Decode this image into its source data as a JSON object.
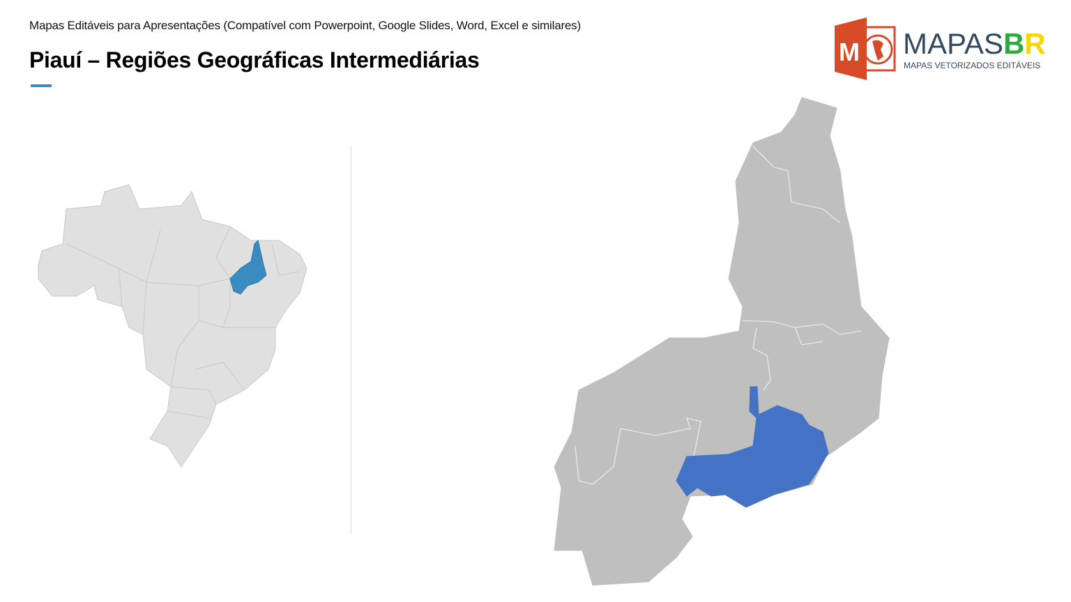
{
  "header": {
    "subtitle": "Mapas Editáveis para Apresentações (Compatível com Powerpoint, Google Slides, Word, Excel e similares)",
    "title": "Piauí – Regiões Geográficas Intermediárias"
  },
  "logo": {
    "text_main": "MAPAS",
    "text_b": "B",
    "text_r": "R",
    "tagline": "MAPAS VETORIZADOS EDITÁVEIS",
    "icon_letter": "M"
  },
  "colors": {
    "accent": "#3a8bbf",
    "brazil_fill": "#e0e0e0",
    "piaui_locator": "#3a8bbf",
    "region_fill": "#bfbfbf",
    "highlight_region": "#4472c4",
    "logo_orange": "#d84b27"
  }
}
